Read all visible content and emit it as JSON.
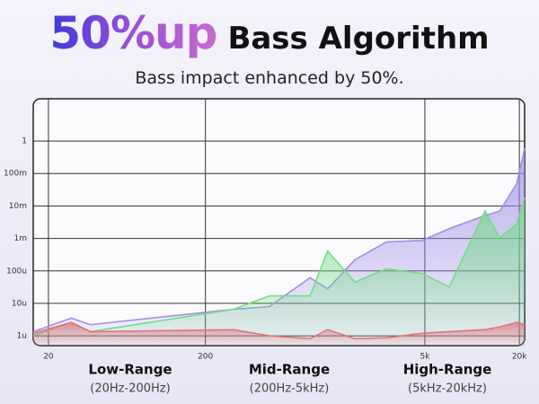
{
  "header": {
    "highlight": "50%up",
    "title": "Bass Algorithm",
    "subtitle": "Bass impact enhanced by 50%."
  },
  "chart_data": {
    "type": "area",
    "log_x": true,
    "log_y": true,
    "grid": true,
    "xlim": [
      16,
      21600
    ],
    "ylim": [
      5e-07,
      20
    ],
    "xticks": [
      20,
      200,
      {
        "value": 5000,
        "label": "5k"
      },
      {
        "value": 20000,
        "label": "20k"
      }
    ],
    "yticks": [
      {
        "value": 1e-06,
        "label": "1u"
      },
      {
        "value": 1e-05,
        "label": "10u"
      },
      {
        "value": 0.0001,
        "label": "100u"
      },
      {
        "value": 0.001,
        "label": "1m"
      },
      {
        "value": 0.01,
        "label": "10m"
      },
      {
        "value": 0.1,
        "label": "100m"
      },
      1
    ],
    "x": [
      16,
      28,
      37,
      302,
      512,
      927,
      1200,
      1790,
      2840,
      4810,
      7140,
      12100,
      15000,
      19200,
      21600
    ],
    "series": [
      {
        "color": "#a08ee6",
        "values": [
          1.35e-06,
          3.5e-06,
          2.2e-06,
          6.6e-06,
          8e-06,
          6.2e-05,
          2.8e-05,
          0.00022,
          0.00078,
          0.00087,
          0.002,
          0.0051,
          0.007,
          0.048,
          0.6
        ]
      },
      {
        "color": "#74dc86",
        "values": [
          1e-06,
          2.6e-06,
          1.35e-06,
          6.6e-06,
          1.7e-05,
          1.7e-05,
          0.00041,
          4.5e-05,
          0.000115,
          8.3e-05,
          3.2e-05,
          0.007,
          0.00105,
          0.0027,
          0.018
        ]
      },
      {
        "color": "#e07480",
        "values": [
          1.2e-06,
          2.6e-06,
          1.35e-06,
          1.55e-06,
          1e-06,
          8.2e-07,
          1.55e-06,
          8.2e-07,
          8.7e-07,
          1.2e-06,
          1.35e-06,
          1.55e-06,
          1.9e-06,
          2.6e-06,
          2.2e-06
        ]
      }
    ],
    "annotations": [
      {
        "label": "Low-Range",
        "range": "(20Hz-200Hz)"
      },
      {
        "label": "Mid-Range",
        "range": "(200Hz-5kHz)"
      },
      {
        "label": "High-Range",
        "range": "(5kHz-20kHz)"
      }
    ]
  }
}
